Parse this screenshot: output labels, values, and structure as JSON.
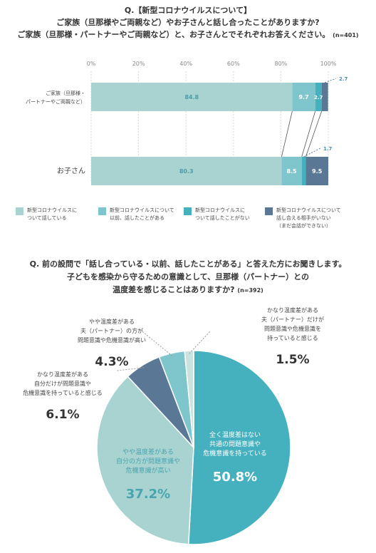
{
  "q1": {
    "line1": "Q.【新型コロナウイルスについて】",
    "line2": "ご家族（旦那様やご両親など）やお子さんと話し合ったことがありますか?",
    "line3": "ご家族（旦那様・パートナーやご両親など）と、お子さんとでそれぞれお答えください。",
    "n": "(n=401)"
  },
  "legend": [
    {
      "label": "新型コロナウイルスに\nついて話している",
      "color": "#a9d3d1"
    },
    {
      "label": "新型コロナウイルスについて\n以前、話したことがある",
      "color": "#7fc6cc"
    },
    {
      "label": "新型コロナウイルスに\nついて話したことがない",
      "color": "#45b0be"
    },
    {
      "label": "新型コロナウイルスについて\n話し合える相手がいない\n（まだ会話ができない）",
      "color": "#5a7895"
    }
  ],
  "q2": {
    "line1": "Q. 前の設問で「話し合っている・以前、話したことがある」と答えた方にお聞きします。",
    "line2": "子どもを感染から守るための意識として、旦那様（パートナー）との",
    "line3": "温度差を感じることはありますか?",
    "n": "(n=392)"
  },
  "chart_data": [
    {
      "type": "bar",
      "orientation": "horizontal",
      "stacked": true,
      "categories": [
        "ご家族（旦那様・\nパートナーやご両親など）",
        "お子さん"
      ],
      "x_ticks": [
        "0%",
        "20%",
        "40%",
        "60%",
        "80%",
        "100%"
      ],
      "xlim": [
        0,
        100
      ],
      "grid": true,
      "series": [
        {
          "name": "新型コロナウイルスについて話している",
          "values": [
            84.8,
            80.3
          ],
          "color": "#a9d3d1"
        },
        {
          "name": "新型コロナウイルスについて以前、話したことがある",
          "values": [
            9.7,
            8.5
          ],
          "color": "#7fc6cc"
        },
        {
          "name": "新型コロナウイルスについて話したことがない",
          "values": [
            2.7,
            1.7
          ],
          "color": "#45b0be"
        },
        {
          "name": "新型コロナウイルスについて話し合える相手がいない（まだ会話ができない）",
          "values": [
            2.7,
            9.5
          ],
          "color": "#5a7895"
        }
      ],
      "value_labels": [
        [
          "84.8",
          "9.7",
          "2.7",
          "2.7"
        ],
        [
          "80.3",
          "8.5",
          "1.7",
          "9.5"
        ]
      ]
    },
    {
      "type": "pie",
      "slices": [
        {
          "label": "全く温度差はない\n共通の問題意識や\n危機意識を持っている",
          "value": 50.8,
          "display": "50.8%",
          "color": "#45b0be"
        },
        {
          "label": "やや温度差がある\n自分の方が問題意識や\n危機意識が高い",
          "value": 37.2,
          "display": "37.2%",
          "color": "#a9d3d1"
        },
        {
          "label": "かなり温度差がある\n自分だけが問題意識や\n危機意識を持っていると感じる",
          "value": 6.1,
          "display": "6.1%",
          "color": "#5a7895"
        },
        {
          "label": "やや温度差がある\n夫（パートナー）の方が\n問題意識や危機意識が高い",
          "value": 4.3,
          "display": "4.3%",
          "color": "#7fc6cc"
        },
        {
          "label": "かなり温度差がある\n夫（パートナー）だけが\n問題意識や危機意識を\n持っていると感じる",
          "value": 1.5,
          "display": "1.5%",
          "color": "#c9e3df"
        }
      ]
    }
  ]
}
